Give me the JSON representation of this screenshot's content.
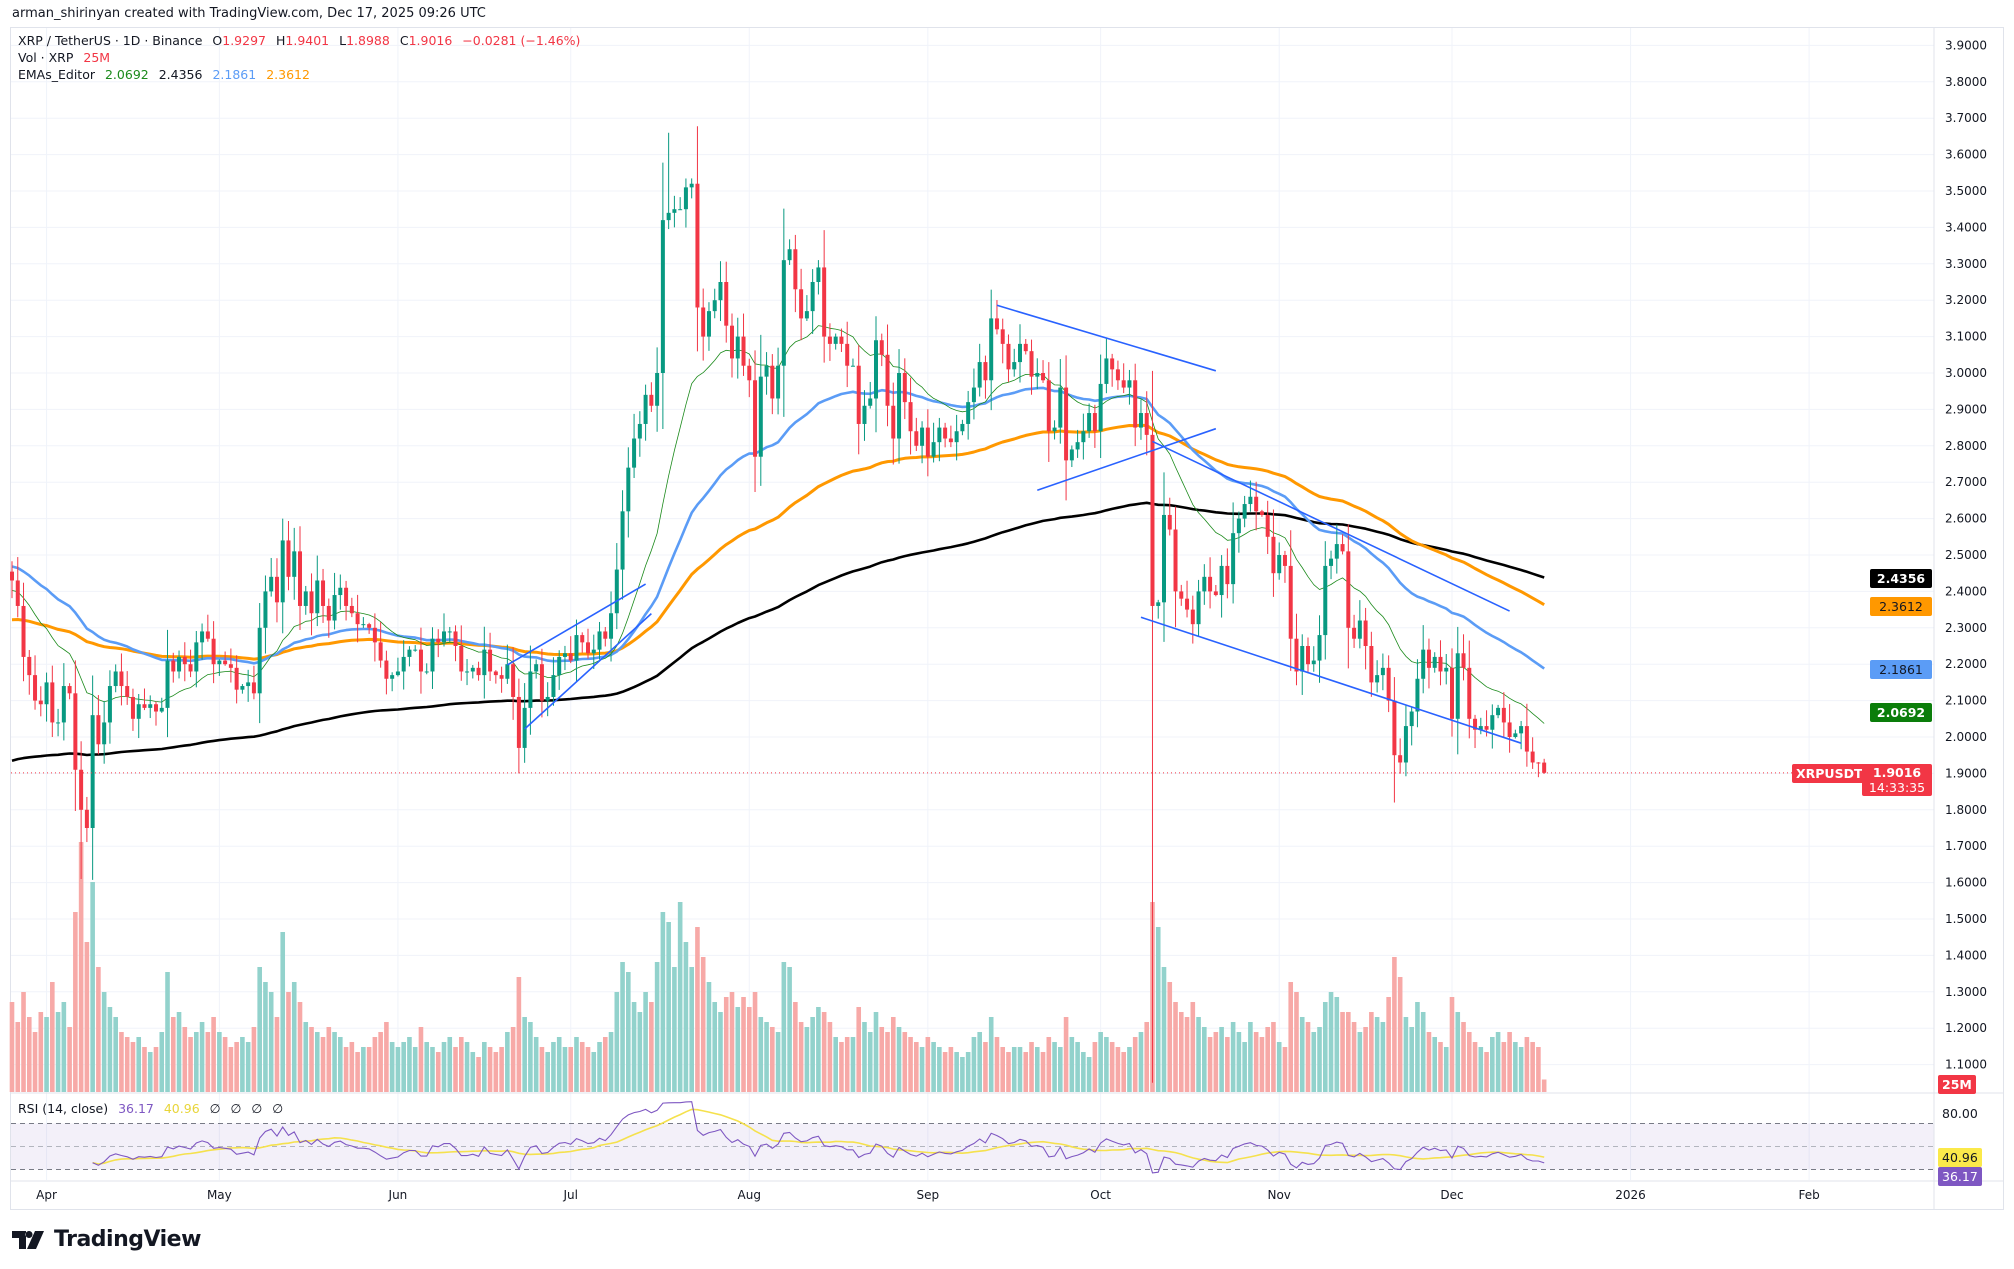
{
  "attribution": "arman_shirinyan created with TradingView.com, Dec 17, 2025 09:26 UTC",
  "legend": {
    "symbol": "XRP / TetherUS · 1D · Binance",
    "o_label": "O",
    "o": "1.9297",
    "h_label": "H",
    "h": "1.9401",
    "l_label": "L",
    "l": "1.8988",
    "c_label": "C",
    "c": "1.9016",
    "change": "−0.0281 (−1.46%)",
    "vol_label": "Vol · XRP",
    "vol": "25M",
    "ema_label": "EMAs_Editor",
    "ema20": "2.0692",
    "ema200": "2.4356",
    "ema50": "2.1861",
    "ema100": "2.3612",
    "rsi_label": "RSI (14, close)",
    "rsi": "36.17",
    "rsi_ma": "40.96",
    "rsi_extra": [
      "∅",
      "∅",
      "∅",
      "∅"
    ]
  },
  "badges": {
    "ema200": "2.4356",
    "ema100": "2.3612",
    "ema50": "2.1861",
    "ema20": "2.0692",
    "symbol": "XRPUSDT",
    "price": "1.9016",
    "countdown": "14:33:35",
    "volume": "25M",
    "rsi_ma": "40.96",
    "rsi": "36.17",
    "rsi_level": "80.00"
  },
  "colors": {
    "up": "#089981",
    "down": "#f23645",
    "ema20": "#1b8a1b",
    "ema50": "#5b9cf6",
    "ema100": "#ff9800",
    "ema200": "#000000",
    "rsi": "#7e57c2",
    "rsi_ma": "#f5e14d",
    "trendline": "#2962ff"
  },
  "brand": "TradingView",
  "chart_data": {
    "type": "candlestick",
    "symbol": "XRPUSDT",
    "interval": "1D",
    "ylim": [
      1.02,
      3.95
    ],
    "price_ticks": [
      "1.1000",
      "1.2000",
      "1.3000",
      "1.4000",
      "1.5000",
      "1.6000",
      "1.7000",
      "1.8000",
      "1.9000",
      "2.0000",
      "2.1000",
      "2.2000",
      "2.3000",
      "2.4000",
      "2.5000",
      "2.6000",
      "2.7000",
      "2.8000",
      "2.9000",
      "3.0000",
      "3.1000",
      "3.2000",
      "3.3000",
      "3.4000",
      "3.5000",
      "3.6000",
      "3.7000",
      "3.8000",
      "3.9000"
    ],
    "time_ticks": [
      {
        "label": "Apr",
        "date": "2025-04-01"
      },
      {
        "label": "May",
        "date": "2025-05-01"
      },
      {
        "label": "Jun",
        "date": "2025-06-01"
      },
      {
        "label": "Jul",
        "date": "2025-07-01"
      },
      {
        "label": "Aug",
        "date": "2025-08-01"
      },
      {
        "label": "Sep",
        "date": "2025-09-01"
      },
      {
        "label": "Oct",
        "date": "2025-10-01"
      },
      {
        "label": "Nov",
        "date": "2025-11-01"
      },
      {
        "label": "Dec",
        "date": "2025-12-01"
      },
      {
        "label": "2026",
        "date": "2026-01-01"
      },
      {
        "label": "Feb",
        "date": "2026-02-01"
      }
    ],
    "closes": [
      2.43,
      2.36,
      2.22,
      2.17,
      2.1,
      2.09,
      2.15,
      2.04,
      2.04,
      2.14,
      2.12,
      1.91,
      1.8,
      1.75,
      2.06,
      1.98,
      2.04,
      2.14,
      2.18,
      2.14,
      2.11,
      2.05,
      2.09,
      2.08,
      2.09,
      2.07,
      2.08,
      2.21,
      2.18,
      2.22,
      2.2,
      2.18,
      2.26,
      2.29,
      2.27,
      2.2,
      2.21,
      2.2,
      2.19,
      2.13,
      2.14,
      2.15,
      2.12,
      2.3,
      2.4,
      2.44,
      2.37,
      2.54,
      2.44,
      2.51,
      2.36,
      2.4,
      2.34,
      2.43,
      2.36,
      2.32,
      2.39,
      2.41,
      2.36,
      2.34,
      2.31,
      2.31,
      2.3,
      2.26,
      2.21,
      2.16,
      2.17,
      2.18,
      2.22,
      2.24,
      2.24,
      2.18,
      2.18,
      2.27,
      2.26,
      2.29,
      2.29,
      2.25,
      2.18,
      2.18,
      2.19,
      2.17,
      2.24,
      2.18,
      2.17,
      2.16,
      2.2,
      2.11,
      1.97,
      2.08,
      2.18,
      2.2,
      2.1,
      2.11,
      2.17,
      2.22,
      2.23,
      2.21,
      2.28,
      2.26,
      2.23,
      2.24,
      2.29,
      2.27,
      2.34,
      2.46,
      2.62,
      2.74,
      2.82,
      2.86,
      2.94,
      2.91,
      3.0,
      3.42,
      3.44,
      3.45,
      3.45,
      3.51,
      3.52,
      3.18,
      3.1,
      3.17,
      3.2,
      3.25,
      3.13,
      3.04,
      3.1,
      3.02,
      2.98,
      2.77,
      2.99,
      3.02,
      2.93,
      3.02,
      3.31,
      3.34,
      3.23,
      3.15,
      3.17,
      3.25,
      3.29,
      3.1,
      3.08,
      3.1,
      3.08,
      3.02,
      3.02,
      2.86,
      2.91,
      2.93,
      3.09,
      3.05,
      2.91,
      2.82,
      3.0,
      2.92,
      2.84,
      2.8,
      2.85,
      2.77,
      2.81,
      2.85,
      2.82,
      2.81,
      2.84,
      2.86,
      2.92,
      2.96,
      3.03,
      2.98,
      3.15,
      3.12,
      3.08,
      3.01,
      3.03,
      3.08,
      3.06,
      2.99,
      3.0,
      2.98,
      2.84,
      2.85,
      2.96,
      2.76,
      2.79,
      2.81,
      2.84,
      2.89,
      2.84,
      2.97,
      3.04,
      3.01,
      2.98,
      2.96,
      2.98,
      2.85,
      2.89,
      2.83,
      2.36,
      2.37,
      2.61,
      2.57,
      2.4,
      2.38,
      2.35,
      2.31,
      2.4,
      2.44,
      2.4,
      2.39,
      2.47,
      2.42,
      2.56,
      2.6,
      2.64,
      2.66,
      2.62,
      2.61,
      2.55,
      2.45,
      2.5,
      2.47,
      2.27,
      2.18,
      2.25,
      2.2,
      2.21,
      2.28,
      2.47,
      2.49,
      2.53,
      2.51,
      2.3,
      2.27,
      2.32,
      2.25,
      2.15,
      2.17,
      2.19,
      2.1,
      1.95,
      1.93,
      2.03,
      2.07,
      2.16,
      2.24,
      2.19,
      2.22,
      2.18,
      2.19,
      2.05,
      2.23,
      2.19,
      2.05,
      2.02,
      2.03,
      2.02,
      2.06,
      2.08,
      2.04,
      2.0,
      2.01,
      2.03,
      1.96,
      1.93,
      1.9297,
      1.9016
    ],
    "extremes": [
      {
        "date": "2025-04-07",
        "low": 1.61
      },
      {
        "date": "2025-06-22",
        "low": 1.9
      },
      {
        "date": "2025-07-18",
        "high": 3.66
      },
      {
        "date": "2025-10-10",
        "low": 1.05
      },
      {
        "date": "2025-11-21",
        "low": 1.82
      },
      {
        "date": "2025-12-17",
        "high": 1.9401,
        "low": 1.8988
      }
    ],
    "volumes_m": [
      180,
      140,
      200,
      150,
      120,
      160,
      150,
      220,
      160,
      180,
      130,
      360,
      500,
      300,
      420,
      250,
      200,
      170,
      150,
      120,
      110,
      100,
      110,
      90,
      80,
      90,
      120,
      240,
      150,
      160,
      130,
      110,
      120,
      140,
      120,
      150,
      120,
      110,
      90,
      100,
      110,
      100,
      130,
      250,
      220,
      200,
      150,
      320,
      200,
      220,
      180,
      140,
      130,
      120,
      110,
      130,
      120,
      110,
      90,
      100,
      80,
      90,
      90,
      110,
      120,
      140,
      100,
      90,
      100,
      110,
      90,
      130,
      100,
      90,
      80,
      100,
      110,
      90,
      110,
      100,
      80,
      70,
      100,
      90,
      80,
      90,
      120,
      130,
      230,
      150,
      140,
      110,
      90,
      80,
      100,
      110,
      90,
      90,
      110,
      100,
      90,
      80,
      100,
      110,
      120,
      200,
      260,
      240,
      180,
      160,
      200,
      180,
      260,
      360,
      340,
      250,
      380,
      300,
      250,
      330,
      270,
      220,
      180,
      160,
      190,
      200,
      170,
      190,
      170,
      200,
      150,
      140,
      130,
      120,
      260,
      250,
      180,
      140,
      130,
      150,
      170,
      160,
      140,
      110,
      100,
      110,
      110,
      170,
      140,
      120,
      160,
      130,
      120,
      150,
      130,
      120,
      110,
      100,
      90,
      110,
      100,
      90,
      80,
      90,
      80,
      70,
      80,
      110,
      120,
      100,
      150,
      110,
      90,
      80,
      90,
      90,
      80,
      100,
      90,
      80,
      110,
      100,
      90,
      150,
      110,
      100,
      80,
      70,
      100,
      120,
      110,
      100,
      90,
      80,
      90,
      110,
      120,
      140,
      380,
      330,
      250,
      220,
      180,
      160,
      150,
      180,
      150,
      130,
      110,
      120,
      130,
      110,
      140,
      120,
      100,
      140,
      120,
      110,
      130,
      140,
      100,
      90,
      220,
      200,
      150,
      140,
      120,
      130,
      180,
      200,
      190,
      160,
      160,
      140,
      120,
      130,
      160,
      150,
      140,
      190,
      270,
      230,
      150,
      130,
      180,
      160,
      120,
      110,
      100,
      90,
      190,
      160,
      140,
      120,
      100,
      90,
      80,
      110,
      120,
      100,
      120,
      100,
      90,
      110,
      100,
      90,
      25
    ],
    "rsi_levels": [
      70,
      50,
      30
    ],
    "trendlines": [
      {
        "from": {
          "date": "2025-06-20",
          "price": 2.198
        },
        "to": {
          "date": "2025-07-14",
          "price": 2.42
        }
      },
      {
        "from": {
          "date": "2025-06-23",
          "price": 2.022
        },
        "to": {
          "date": "2025-07-15",
          "price": 2.339
        }
      },
      {
        "from": {
          "date": "2025-09-13",
          "price": 3.186
        },
        "to": {
          "date": "2025-10-21",
          "price": 3.006
        }
      },
      {
        "from": {
          "date": "2025-09-20",
          "price": 2.678
        },
        "to": {
          "date": "2025-10-21",
          "price": 2.847
        }
      },
      {
        "from": {
          "date": "2025-10-08",
          "price": 2.329
        },
        "to": {
          "date": "2025-12-13",
          "price": 1.983
        }
      },
      {
        "from": {
          "date": "2025-10-10",
          "price": 2.812
        },
        "to": {
          "date": "2025-12-11",
          "price": 2.346
        }
      }
    ]
  }
}
